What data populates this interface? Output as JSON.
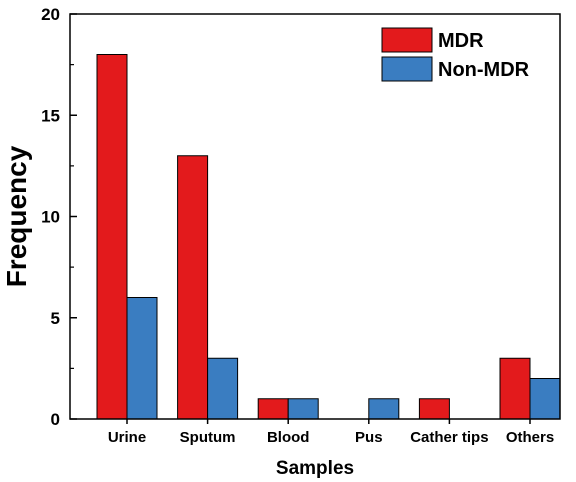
{
  "chart_data": {
    "type": "bar",
    "categories": [
      "Urine",
      "Sputum",
      "Blood",
      "Pus",
      "Cather tips",
      "Others"
    ],
    "series": [
      {
        "name": "MDR",
        "values": [
          18,
          13,
          1,
          0,
          1,
          3
        ],
        "color": "#e31a1c"
      },
      {
        "name": "Non-MDR",
        "values": [
          6,
          3,
          1,
          1,
          0,
          2
        ],
        "color": "#3a7dc1"
      }
    ],
    "xlabel": "Samples",
    "ylabel": "Frequency",
    "ylim": [
      0,
      20
    ],
    "yticks": [
      "0",
      "5",
      "10",
      "15",
      "20"
    ],
    "grid": false,
    "legend_position": "top-right"
  }
}
